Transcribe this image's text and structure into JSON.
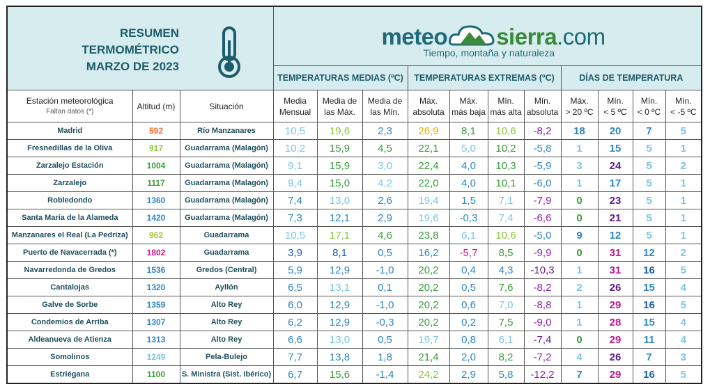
{
  "header": {
    "title_lines": [
      "RESUMEN",
      "TERMOMÉTRICO",
      "MARZO DE 2023"
    ],
    "logo": {
      "part1": "meteo",
      "part2": "sierra",
      "part3": ".com",
      "tagline": "Tiempo, montaña y naturaleza"
    }
  },
  "groups": [
    "TEMPERATURAS MEDIAS (ºC)",
    "TEMPERATURAS EXTREMAS (ºC)",
    "DÍAS DE TEMPERATURA"
  ],
  "station_header": [
    "Estación meteorológica",
    "Faltan datos (*)"
  ],
  "altitude_header": "Altitud (m)",
  "location_header": "Situación",
  "columns": [
    [
      "Media",
      "Mensual"
    ],
    [
      "Media de",
      "las Máx."
    ],
    [
      "Media de",
      "las Mín."
    ],
    [
      "Máx.",
      "absoluta"
    ],
    [
      "Máx.",
      "más baja"
    ],
    [
      "Mín.",
      "más alta"
    ],
    [
      "Mín.",
      "absoluta"
    ],
    [
      "Máx.",
      "> 20 ºC"
    ],
    [
      "Mín.",
      "< 5 ºC"
    ],
    [
      "Mín.",
      "< 0 ºC"
    ],
    [
      "Mín.",
      "< -5 ºC"
    ]
  ],
  "rows": [
    {
      "station": "Madrid",
      "altitude": "592",
      "altitude_color": "#f07030",
      "location": "Río Manzanares",
      "values": [
        "10,5",
        "19,6",
        "2,3",
        "26,9",
        "8,1",
        "10,6",
        "-8,2",
        "18",
        "20",
        "7",
        "5"
      ],
      "colors": [
        "#7cc5e6",
        "#8dc63f",
        "#2f86c4",
        "#e8b000",
        "#3a9d3a",
        "#8dc63f",
        "#8e24aa",
        "#2f86c4",
        "#2f86c4",
        "#2f86c4",
        "#7cc5e6"
      ]
    },
    {
      "station": "Fresnedillas de la Oliva",
      "altitude": "917",
      "altitude_color": "#8dc63f",
      "location": "Guadarrama (Malagón)",
      "values": [
        "10,2",
        "15,9",
        "4,5",
        "22,1",
        "5,0",
        "10,2",
        "-5,8",
        "1",
        "15",
        "5",
        "1"
      ],
      "colors": [
        "#7cc5e6",
        "#3a9d3a",
        "#3a9d3a",
        "#3a9d3a",
        "#7cc5e6",
        "#3a9d3a",
        "#2f86c4",
        "#7cc5e6",
        "#2f86c4",
        "#7cc5e6",
        "#7cc5e6"
      ]
    },
    {
      "station": "Zarzalejo Estación",
      "altitude": "1004",
      "altitude_color": "#3a9d3a",
      "location": "Guadarrama (Malagón)",
      "values": [
        "9,1",
        "15,9",
        "3,0",
        "22,4",
        "4,0",
        "10,3",
        "-5,9",
        "3",
        "24",
        "5",
        "2"
      ],
      "colors": [
        "#7cc5e6",
        "#3a9d3a",
        "#7cc5e6",
        "#3a9d3a",
        "#2f86c4",
        "#3a9d3a",
        "#2f86c4",
        "#7cc5e6",
        "#5e1a8a",
        "#7cc5e6",
        "#7cc5e6"
      ]
    },
    {
      "station": "Zarzalejo",
      "altitude": "1117",
      "altitude_color": "#3a9d3a",
      "location": "Guadarrama (Malagón)",
      "values": [
        "9,4",
        "15,0",
        "4,2",
        "22,0",
        "4,0",
        "10,1",
        "-6,0",
        "1",
        "17",
        "5",
        "1"
      ],
      "colors": [
        "#7cc5e6",
        "#3a9d3a",
        "#7cc5e6",
        "#3a9d3a",
        "#2f86c4",
        "#3a9d3a",
        "#2f86c4",
        "#7cc5e6",
        "#2f86c4",
        "#7cc5e6",
        "#7cc5e6"
      ]
    },
    {
      "station": "Robledondo",
      "altitude": "1360",
      "altitude_color": "#2f86c4",
      "location": "Guadarrama (Malagón)",
      "values": [
        "7,4",
        "13,0",
        "2,6",
        "19,4",
        "1,5",
        "7,1",
        "-7,9",
        "0",
        "23",
        "5",
        "1"
      ],
      "colors": [
        "#2f86c4",
        "#7cc5e6",
        "#2f86c4",
        "#7cc5e6",
        "#2f86c4",
        "#7cc5e6",
        "#8e24aa",
        "#3a9d3a",
        "#5e1a8a",
        "#7cc5e6",
        "#7cc5e6"
      ]
    },
    {
      "station": "Santa María de la Alameda",
      "altitude": "1420",
      "altitude_color": "#2f86c4",
      "location": "Guadarrama (Malagón)",
      "values": [
        "7,3",
        "12,1",
        "2,9",
        "19,6",
        "-0,3",
        "7,4",
        "-6,6",
        "0",
        "21",
        "5",
        "1"
      ],
      "colors": [
        "#2f86c4",
        "#2f86c4",
        "#2f86c4",
        "#7cc5e6",
        "#2f86c4",
        "#7cc5e6",
        "#8e24aa",
        "#3a9d3a",
        "#5e1a8a",
        "#7cc5e6",
        "#7cc5e6"
      ]
    },
    {
      "station": "Manzanares el Real (La Pedriza)",
      "altitude": "962",
      "altitude_color": "#a8c83a",
      "location": "Guadarrama",
      "values": [
        "10,5",
        "17,1",
        "4,6",
        "23,8",
        "6,1",
        "10,6",
        "-5,0",
        "9",
        "12",
        "5",
        "1"
      ],
      "colors": [
        "#7cc5e6",
        "#8dc63f",
        "#3a9d3a",
        "#3a9d3a",
        "#7cc5e6",
        "#8dc63f",
        "#2f86c4",
        "#2f86c4",
        "#2f86c4",
        "#7cc5e6",
        "#7cc5e6"
      ]
    },
    {
      "station": "Puerto de Navacerrada (*)",
      "altitude": "1802",
      "altitude_color": "#d4148c",
      "location": "Guadarrama",
      "values": [
        "3,9",
        "8,1",
        "0,5",
        "16,2",
        "-5,7",
        "8,5",
        "-9,9",
        "0",
        "31",
        "12",
        "2"
      ],
      "colors": [
        "#1a5ea8",
        "#1a5ea8",
        "#2f86c4",
        "#2f86c4",
        "#d4148c",
        "#3a9d3a",
        "#8e24aa",
        "#3a9d3a",
        "#c0178c",
        "#2f86c4",
        "#7cc5e6"
      ]
    },
    {
      "station": "Navarredonda de Gredos",
      "altitude": "1536",
      "altitude_color": "#2f86c4",
      "location": "Gredos (Central)",
      "values": [
        "5,9",
        "12,9",
        "-1,0",
        "20,2",
        "0,4",
        "4,3",
        "-10,3",
        "1",
        "31",
        "16",
        "5"
      ],
      "colors": [
        "#2f86c4",
        "#2f86c4",
        "#2f86c4",
        "#3a9d3a",
        "#2f86c4",
        "#2f86c4",
        "#5e1a8a",
        "#7cc5e6",
        "#c0178c",
        "#1a5ea8",
        "#7cc5e6"
      ]
    },
    {
      "station": "Cantalojas",
      "altitude": "1320",
      "altitude_color": "#2f86c4",
      "location": "Ayllón",
      "values": [
        "6,5",
        "13,1",
        "0,1",
        "20,2",
        "0,5",
        "7,6",
        "-8,2",
        "2",
        "26",
        "15",
        "4"
      ],
      "colors": [
        "#2f86c4",
        "#7cc5e6",
        "#2f86c4",
        "#3a9d3a",
        "#2f86c4",
        "#3a9d3a",
        "#8e24aa",
        "#7cc5e6",
        "#5e1a8a",
        "#2f86c4",
        "#7cc5e6"
      ]
    },
    {
      "station": "Galve de Sorbe",
      "altitude": "1359",
      "altitude_color": "#2f86c4",
      "location": "Alto Rey",
      "values": [
        "6,0",
        "12,9",
        "-1,0",
        "20,2",
        "0,6",
        "7,0",
        "-8,8",
        "1",
        "29",
        "16",
        "5"
      ],
      "colors": [
        "#2f86c4",
        "#2f86c4",
        "#2f86c4",
        "#3a9d3a",
        "#2f86c4",
        "#7cc5e6",
        "#8e24aa",
        "#7cc5e6",
        "#c0178c",
        "#1a5ea8",
        "#7cc5e6"
      ]
    },
    {
      "station": "Condemios de Arriba",
      "altitude": "1307",
      "altitude_color": "#2f86c4",
      "location": "Alto Rey",
      "values": [
        "6,2",
        "12,9",
        "-0,3",
        "20,2",
        "0,2",
        "7,5",
        "-9,0",
        "1",
        "28",
        "15",
        "4"
      ],
      "colors": [
        "#2f86c4",
        "#2f86c4",
        "#2f86c4",
        "#3a9d3a",
        "#2f86c4",
        "#3a9d3a",
        "#8e24aa",
        "#7cc5e6",
        "#c0178c",
        "#2f86c4",
        "#7cc5e6"
      ]
    },
    {
      "station": "Aldeanueva de Atienza",
      "altitude": "1313",
      "altitude_color": "#2f86c4",
      "location": "Alto Rey",
      "values": [
        "6,6",
        "13,0",
        "0,5",
        "19,7",
        "0,8",
        "6,1",
        "-7,4",
        "0",
        "29",
        "11",
        "4"
      ],
      "colors": [
        "#2f86c4",
        "#7cc5e6",
        "#2f86c4",
        "#7cc5e6",
        "#2f86c4",
        "#7cc5e6",
        "#5e1a8a",
        "#3a9d3a",
        "#c0178c",
        "#2f86c4",
        "#7cc5e6"
      ]
    },
    {
      "station": "Somolinos",
      "altitude": "1249",
      "altitude_color": "#7cc5e6",
      "location": "Pela-Bulejo",
      "values": [
        "7,7",
        "13,8",
        "1,8",
        "21,4",
        "2,0",
        "8,2",
        "-7,2",
        "4",
        "26",
        "7",
        "3"
      ],
      "colors": [
        "#2f86c4",
        "#2f86c4",
        "#2f86c4",
        "#3a9d3a",
        "#2f86c4",
        "#3a9d3a",
        "#8e24aa",
        "#7cc5e6",
        "#5e1a8a",
        "#2f86c4",
        "#7cc5e6"
      ]
    },
    {
      "station": "Estriégana",
      "altitude": "1100",
      "altitude_color": "#3a9d3a",
      "location": "S. Ministra (Sist. Ibérico)",
      "values": [
        "6,7",
        "15,6",
        "-1,4",
        "24,2",
        "2,9",
        "5,8",
        "-12,2",
        "7",
        "29",
        "16",
        "5"
      ],
      "colors": [
        "#2f86c4",
        "#3a9d3a",
        "#2f86c4",
        "#8dc63f",
        "#2f86c4",
        "#2f86c4",
        "#8e24aa",
        "#2f86c4",
        "#c0178c",
        "#1a5ea8",
        "#7cc5e6"
      ]
    }
  ]
}
